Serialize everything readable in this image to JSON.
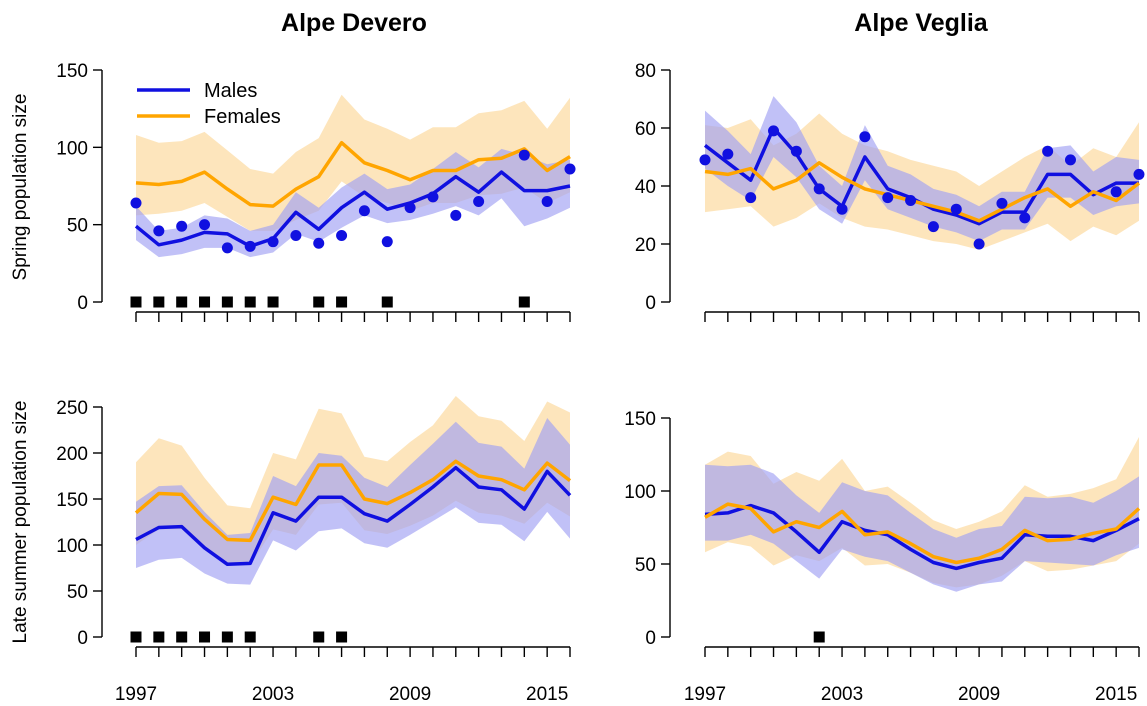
{
  "colors": {
    "males": "#1010e0",
    "females": "#ffa500",
    "males_band": "#9f9ff3",
    "females_band": "#fde0b0",
    "marker": "#000000"
  },
  "titles": {
    "left": "Alpe Devero",
    "right": "Alpe Veglia"
  },
  "row_labels": {
    "top": "Spring population size",
    "bottom": "Late summer population size"
  },
  "legend": {
    "males": "Males",
    "females": "Females",
    "placement": "top-left"
  },
  "years": [
    1997,
    1998,
    1999,
    2000,
    2001,
    2002,
    2003,
    2004,
    2005,
    2006,
    2007,
    2008,
    2009,
    2010,
    2011,
    2012,
    2013,
    2014,
    2015,
    2016
  ],
  "x_tick_labels": [
    "1997",
    "2003",
    "2009",
    "2015"
  ],
  "chart_data": [
    {
      "type": "line",
      "panel": "spring-devero",
      "title": "Alpe Devero",
      "ylabel": "Spring population size",
      "ylim": [
        0,
        150
      ],
      "y_ticks": [
        "0",
        "50",
        "100",
        "150"
      ],
      "series": [
        {
          "name": "Males",
          "values": [
            49,
            37,
            40,
            45,
            44,
            36,
            41,
            58,
            47,
            61,
            71,
            60,
            64,
            70,
            81,
            71,
            84,
            72,
            72,
            75
          ],
          "lower": [
            40,
            29,
            31,
            35,
            35,
            29,
            32,
            44,
            39,
            48,
            56,
            51,
            53,
            57,
            62,
            56,
            67,
            49,
            54,
            61
          ],
          "upper": [
            62,
            46,
            48,
            56,
            54,
            46,
            50,
            71,
            61,
            74,
            83,
            73,
            76,
            86,
            97,
            87,
            99,
            95,
            89,
            92
          ]
        },
        {
          "name": "Females",
          "values": [
            77,
            76,
            78,
            84,
            73,
            63,
            62,
            73,
            81,
            103,
            90,
            85,
            79,
            85,
            85,
            92,
            93,
            99,
            85,
            94
          ],
          "lower": [
            56,
            57,
            59,
            64,
            55,
            46,
            46,
            53,
            59,
            78,
            68,
            64,
            59,
            64,
            64,
            69,
            70,
            74,
            64,
            71
          ],
          "upper": [
            108,
            103,
            104,
            110,
            98,
            86,
            83,
            97,
            106,
            134,
            118,
            112,
            105,
            113,
            113,
            122,
            124,
            130,
            112,
            132
          ]
        }
      ],
      "points": {
        "x": [
          1997,
          1998,
          1999,
          2000,
          2001,
          2002,
          2003,
          2004,
          2005,
          2006,
          2007,
          2008,
          2009,
          2010,
          2011,
          2012,
          2014,
          2015,
          2016
        ],
        "y": [
          64,
          46,
          49,
          50,
          35,
          36,
          39,
          43,
          38,
          43,
          59,
          39,
          61,
          68,
          56,
          65,
          95,
          65,
          86
        ]
      },
      "marker_years": [
        1997,
        1998,
        1999,
        2000,
        2001,
        2002,
        2003,
        2005,
        2006,
        2008,
        2014
      ]
    },
    {
      "type": "line",
      "panel": "spring-veglia",
      "title": "Alpe Veglia",
      "ylim": [
        0,
        80
      ],
      "y_ticks": [
        "0",
        "20",
        "40",
        "60",
        "80"
      ],
      "series": [
        {
          "name": "Males",
          "values": [
            54,
            48,
            42,
            60,
            51,
            39,
            33,
            50,
            39,
            36,
            32,
            30,
            27,
            31,
            31,
            44,
            44,
            37,
            41,
            41
          ],
          "lower": [
            46,
            40,
            35,
            50,
            43,
            32,
            27,
            42,
            32,
            29,
            26,
            24,
            21,
            25,
            25,
            36,
            36,
            30,
            33,
            34
          ],
          "upper": [
            66,
            59,
            51,
            71,
            62,
            47,
            40,
            61,
            47,
            44,
            39,
            37,
            33,
            38,
            38,
            53,
            54,
            45,
            50,
            49
          ]
        },
        {
          "name": "Females",
          "values": [
            45,
            44,
            46,
            39,
            42,
            48,
            43,
            39,
            37,
            35,
            33,
            31,
            28,
            32,
            36,
            39,
            33,
            38,
            35,
            41
          ],
          "lower": [
            31,
            32,
            33,
            26,
            29,
            34,
            29,
            26,
            25,
            23,
            21,
            20,
            18,
            21,
            24,
            27,
            21,
            26,
            23,
            28
          ],
          "upper": [
            61,
            60,
            63,
            54,
            58,
            65,
            58,
            54,
            52,
            49,
            47,
            45,
            40,
            45,
            50,
            54,
            47,
            53,
            50,
            62
          ]
        }
      ],
      "points": {
        "x": [
          1997,
          1998,
          1999,
          2000,
          2001,
          2002,
          2003,
          2004,
          2005,
          2006,
          2007,
          2008,
          2009,
          2010,
          2011,
          2012,
          2013,
          2015,
          2016
        ],
        "y": [
          49,
          51,
          36,
          59,
          52,
          39,
          32,
          57,
          36,
          35,
          26,
          32,
          20,
          34,
          29,
          52,
          49,
          38,
          44
        ]
      },
      "marker_years": []
    },
    {
      "type": "line",
      "panel": "summer-devero",
      "ylabel": "Late summer population size",
      "ylim": [
        0,
        250
      ],
      "y_ticks": [
        "0",
        "50",
        "100",
        "150",
        "200",
        "250"
      ],
      "series": [
        {
          "name": "Males",
          "values": [
            106,
            119,
            120,
            97,
            79,
            80,
            135,
            126,
            152,
            152,
            134,
            126,
            144,
            163,
            184,
            163,
            160,
            139,
            180,
            154
          ],
          "lower": [
            75,
            84,
            86,
            69,
            58,
            57,
            105,
            94,
            115,
            118,
            102,
            97,
            111,
            126,
            141,
            124,
            122,
            104,
            136,
            107
          ],
          "upper": [
            147,
            164,
            165,
            136,
            111,
            113,
            175,
            164,
            200,
            197,
            173,
            163,
            187,
            210,
            234,
            211,
            207,
            183,
            238,
            209
          ]
        },
        {
          "name": "Females",
          "values": [
            135,
            156,
            155,
            128,
            106,
            105,
            152,
            144,
            187,
            187,
            150,
            145,
            157,
            171,
            191,
            175,
            171,
            160,
            189,
            170
          ],
          "lower": [
            100,
            117,
            117,
            96,
            79,
            78,
            117,
            111,
            144,
            146,
            116,
            112,
            121,
            132,
            148,
            135,
            132,
            123,
            146,
            131
          ],
          "upper": [
            190,
            216,
            208,
            173,
            143,
            140,
            200,
            193,
            248,
            243,
            196,
            191,
            212,
            230,
            262,
            240,
            235,
            213,
            256,
            244
          ]
        }
      ],
      "marker_years": [
        1997,
        1998,
        1999,
        2000,
        2001,
        2002,
        2005,
        2006
      ]
    },
    {
      "type": "line",
      "panel": "summer-veglia",
      "ylim": [
        0,
        150
      ],
      "y_ticks": [
        "0",
        "50",
        "100",
        "150"
      ],
      "series": [
        {
          "name": "Males",
          "values": [
            84,
            85,
            90,
            85,
            72,
            58,
            79,
            73,
            70,
            60,
            51,
            47,
            51,
            54,
            70,
            69,
            69,
            66,
            73,
            81
          ],
          "lower": [
            66,
            66,
            70,
            64,
            52,
            40,
            60,
            55,
            52,
            44,
            36,
            31,
            36,
            38,
            52,
            51,
            50,
            49,
            56,
            61
          ],
          "upper": [
            118,
            117,
            118,
            112,
            97,
            85,
            106,
            100,
            97,
            85,
            74,
            68,
            74,
            76,
            96,
            95,
            96,
            92,
            100,
            110
          ]
        },
        {
          "name": "Females",
          "values": [
            82,
            91,
            88,
            72,
            79,
            75,
            86,
            70,
            72,
            64,
            55,
            51,
            54,
            60,
            73,
            66,
            67,
            71,
            74,
            88
          ],
          "lower": [
            58,
            65,
            62,
            49,
            56,
            52,
            61,
            49,
            50,
            44,
            37,
            34,
            36,
            42,
            52,
            45,
            46,
            49,
            52,
            64
          ],
          "upper": [
            118,
            127,
            124,
            105,
            113,
            107,
            122,
            100,
            103,
            92,
            80,
            74,
            79,
            86,
            104,
            96,
            98,
            102,
            108,
            137
          ]
        }
      ],
      "marker_years": [
        2002
      ]
    }
  ]
}
